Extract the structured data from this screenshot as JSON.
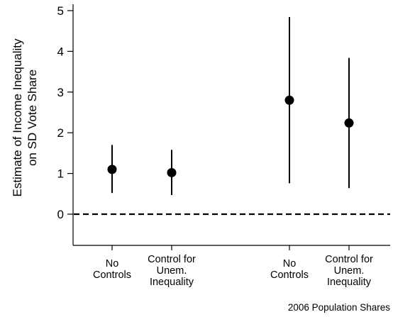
{
  "chart_data": {
    "type": "scatter",
    "subtype": "point-estimate with confidence intervals",
    "ylabel_lines": [
      "Estimate of Income Inequality",
      "on SD Vote Share"
    ],
    "ylim": [
      -0.7,
      5.15
    ],
    "yticks": [
      0,
      1,
      2,
      3,
      4,
      5
    ],
    "reference_line": {
      "y": 0,
      "style": "dashed"
    },
    "grid": false,
    "legend": "none",
    "note": "2006 Population Shares",
    "points": [
      {
        "label_lines": [
          "No",
          "Controls"
        ],
        "estimate": 1.1,
        "ci_low": 0.52,
        "ci_high": 1.7
      },
      {
        "label_lines": [
          "Control for",
          "Unem.",
          "Inequality"
        ],
        "estimate": 1.02,
        "ci_low": 0.47,
        "ci_high": 1.58
      },
      {
        "label_lines": [
          "No",
          "Controls"
        ],
        "estimate": 2.8,
        "ci_low": 0.76,
        "ci_high": 4.84
      },
      {
        "label_lines": [
          "Control for",
          "Unem.",
          "Inequality"
        ],
        "estimate": 2.24,
        "ci_low": 0.64,
        "ci_high": 3.84
      }
    ]
  }
}
